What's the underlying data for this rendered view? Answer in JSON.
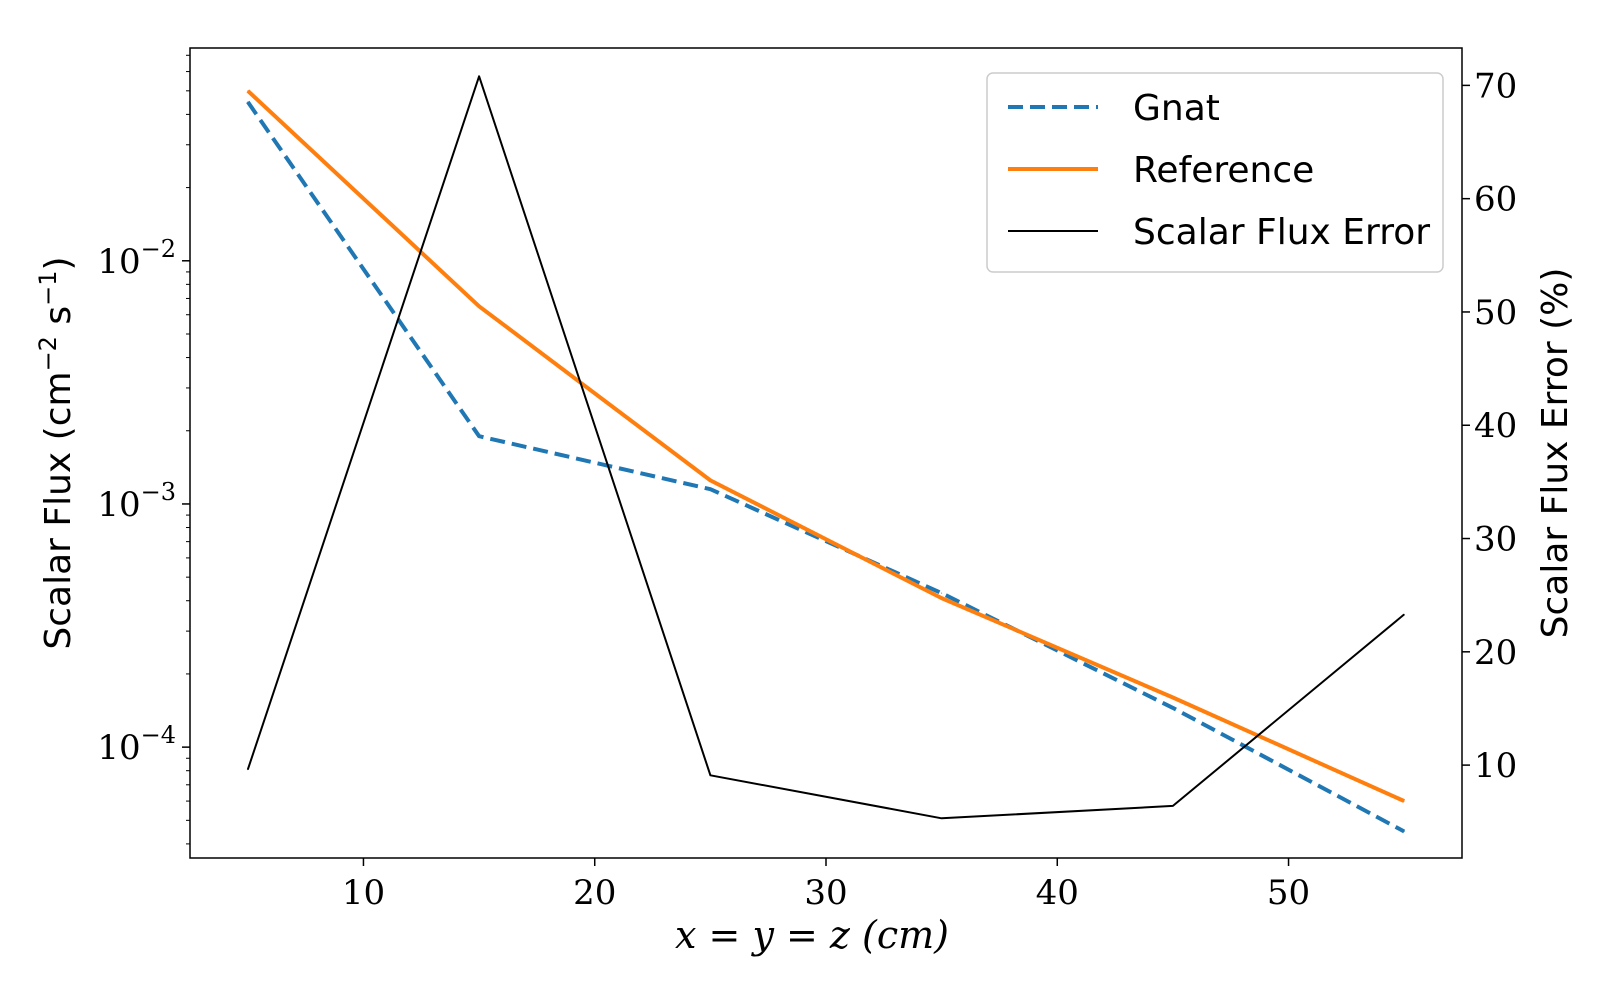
{
  "chart_data": {
    "type": "line",
    "title": "",
    "xlabel": "x = y = z (cm)",
    "ylabel_left": "Scalar Flux (cm−2 s−1)",
    "ylabel_left_parts": {
      "base": "Scalar Flux (cm",
      "exp1": "−2",
      "mid": " s",
      "exp2": "−1",
      "end": ")"
    },
    "ylabel_right": "Scalar Flux Error (%)",
    "x_ticks": [
      10,
      20,
      30,
      40,
      50
    ],
    "y_left_scale": "log",
    "y_left_ticks": [
      {
        "value": 0.0001,
        "base": "10",
        "exp": "−4"
      },
      {
        "value": 0.001,
        "base": "10",
        "exp": "−3"
      },
      {
        "value": 0.01,
        "base": "10",
        "exp": "−2"
      }
    ],
    "y_right_ticks": [
      10,
      20,
      30,
      40,
      50,
      60,
      70
    ],
    "xlim": [
      2.5,
      57.5
    ],
    "ylim_left": [
      3.5e-05,
      0.075
    ],
    "ylim_right": [
      1.8,
      73.3
    ],
    "x": [
      5,
      15,
      25,
      35,
      45,
      55
    ],
    "series": [
      {
        "name": "Gnat",
        "axis": "left",
        "color": "#1f77b4",
        "dash": true,
        "width": 4,
        "values": [
          0.045,
          0.0019,
          0.00115,
          0.00043,
          0.000145,
          4.5e-05
        ]
      },
      {
        "name": "Reference",
        "axis": "left",
        "color": "#ff7f0e",
        "dash": false,
        "width": 4,
        "values": [
          0.05,
          0.0065,
          0.00125,
          0.00041,
          0.00016,
          6e-05
        ]
      },
      {
        "name": "Scalar Flux Error",
        "axis": "right",
        "color": "#000000",
        "dash": false,
        "width": 2,
        "values": [
          9.6,
          70.8,
          9.1,
          5.3,
          6.4,
          23.3
        ]
      }
    ],
    "legend_position": "top-right",
    "grid": false
  }
}
